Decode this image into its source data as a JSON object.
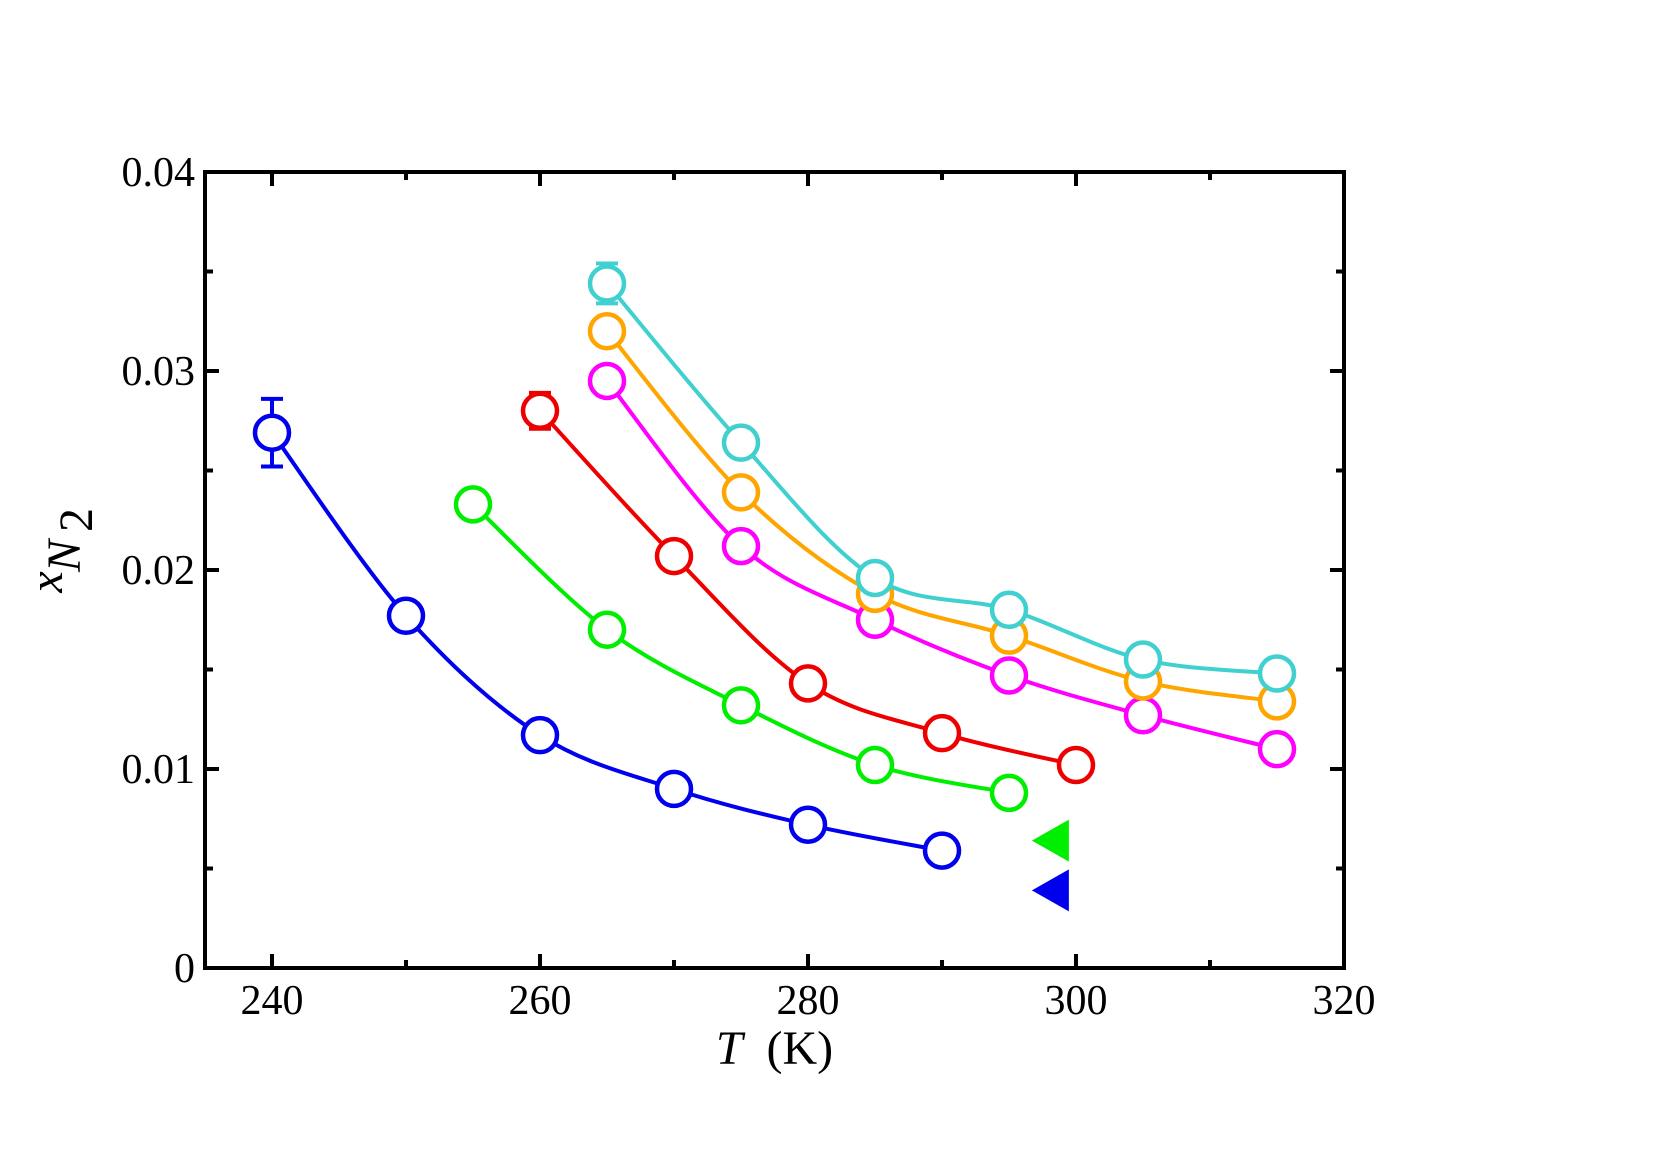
{
  "chart_data": {
    "type": "line",
    "title": "",
    "xlabel": {
      "symbol": "T",
      "unit": "(K)"
    },
    "ylabel": {
      "symbol": "x",
      "subscript_main": "N",
      "subscript_sub": "2"
    },
    "xlim": [
      235,
      320
    ],
    "ylim": [
      0,
      0.04
    ],
    "x_ticks": [
      {
        "value": 240,
        "label": "240"
      },
      {
        "value": 260,
        "label": "260"
      },
      {
        "value": 280,
        "label": "280"
      },
      {
        "value": 300,
        "label": "300"
      },
      {
        "value": 320,
        "label": "320"
      }
    ],
    "x_minor_ticks": [
      250,
      270,
      290,
      310
    ],
    "y_ticks": [
      {
        "value": 0,
        "label": "0"
      },
      {
        "value": 0.01,
        "label": "0.01"
      },
      {
        "value": 0.02,
        "label": "0.02"
      },
      {
        "value": 0.03,
        "label": "0.03"
      },
      {
        "value": 0.04,
        "label": "0.04"
      }
    ],
    "y_minor_ticks": [
      0.005,
      0.015,
      0.025,
      0.035
    ],
    "grid": false,
    "series": [
      {
        "name": "blue",
        "color": "#0000ee",
        "x": [
          240,
          250,
          260,
          270,
          280,
          290
        ],
        "y": [
          0.0269,
          0.0177,
          0.0117,
          0.009,
          0.0072,
          0.0059
        ],
        "error": [
          0.0017,
          0,
          0,
          0,
          0,
          0
        ]
      },
      {
        "name": "green",
        "color": "#00ee00",
        "x": [
          255,
          265,
          275,
          285,
          295
        ],
        "y": [
          0.0233,
          0.017,
          0.0132,
          0.0102,
          0.0088
        ],
        "error": [
          0,
          0,
          0,
          0,
          0
        ]
      },
      {
        "name": "red",
        "color": "#ee0000",
        "x": [
          260,
          270,
          280,
          290,
          300
        ],
        "y": [
          0.028,
          0.0207,
          0.0143,
          0.0118,
          0.0102
        ],
        "error": [
          0.0009,
          0,
          0,
          0,
          0
        ]
      },
      {
        "name": "magenta",
        "color": "#ff00ff",
        "x": [
          265,
          275,
          285,
          295,
          305,
          315
        ],
        "y": [
          0.0295,
          0.0212,
          0.0175,
          0.0147,
          0.0127,
          0.011
        ],
        "error": [
          0,
          0,
          0,
          0,
          0,
          0
        ]
      },
      {
        "name": "orange",
        "color": "#ffa500",
        "x": [
          265,
          275,
          285,
          295,
          305,
          315
        ],
        "y": [
          0.032,
          0.0239,
          0.0188,
          0.0167,
          0.0144,
          0.0134
        ],
        "error": [
          0,
          0,
          0,
          0,
          0,
          0
        ]
      },
      {
        "name": "cyan",
        "color": "#40d0d0",
        "x": [
          265,
          275,
          285,
          295,
          305,
          315
        ],
        "y": [
          0.0344,
          0.0264,
          0.0196,
          0.018,
          0.0155,
          0.0148
        ],
        "error": [
          0.001,
          0,
          0,
          0,
          0,
          0
        ]
      }
    ],
    "markers": [
      {
        "name": "green-triangle",
        "color": "#00ee00",
        "x": 298.2,
        "y": 0.0064
      },
      {
        "name": "blue-triangle",
        "color": "#0000ee",
        "x": 298.2,
        "y": 0.0039
      }
    ]
  }
}
